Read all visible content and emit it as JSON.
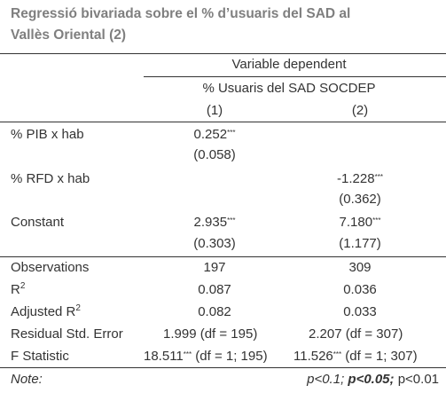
{
  "title_line1": "Regressió bivariada sobre el % d’usuaris del SAD al",
  "title_line2": "Vallès Oriental (2)",
  "header": {
    "dep_var_caption": "Variable dependent",
    "dep_var_name": "% Usuaris del SAD SOCDEP",
    "col1": "(1)",
    "col2": "(2)"
  },
  "rows": {
    "pib": {
      "label": "% PIB x hab",
      "coef1": "0.252",
      "stars1": "***",
      "se1": "(0.058)"
    },
    "rfd": {
      "label": "% RFD x hab",
      "coef2": "-1.228",
      "stars2": "***",
      "se2": "(0.362)"
    },
    "constant": {
      "label": "Constant",
      "coef1": "2.935",
      "stars1": "***",
      "se1": "(0.303)",
      "coef2": "7.180",
      "stars2": "***",
      "se2": "(1.177)"
    }
  },
  "stats": {
    "obs": {
      "label": "Observations",
      "v1": "197",
      "v2": "309"
    },
    "r2": {
      "label_base": "R",
      "label_sup": "2",
      "v1": "0.087",
      "v2": "0.036"
    },
    "adj_r2": {
      "label_base": "Adjusted R",
      "label_sup": "2",
      "v1": "0.082",
      "v2": "0.033"
    },
    "rse": {
      "label": "Residual Std. Error",
      "v1": "1.999 (df = 195)",
      "v2": "2.207 (df = 307)"
    },
    "fstat": {
      "label": "F Statistic",
      "v1": "18.511",
      "stars1": "***",
      "df1": " (df = 1; 195)",
      "v2": "11.526",
      "stars2": "***",
      "df2": " (df = 1; 307)"
    }
  },
  "note": {
    "label": "Note:",
    "p1": "p<0.1;",
    "p2": "p<0.05;",
    "p3": "p<0.01"
  }
}
